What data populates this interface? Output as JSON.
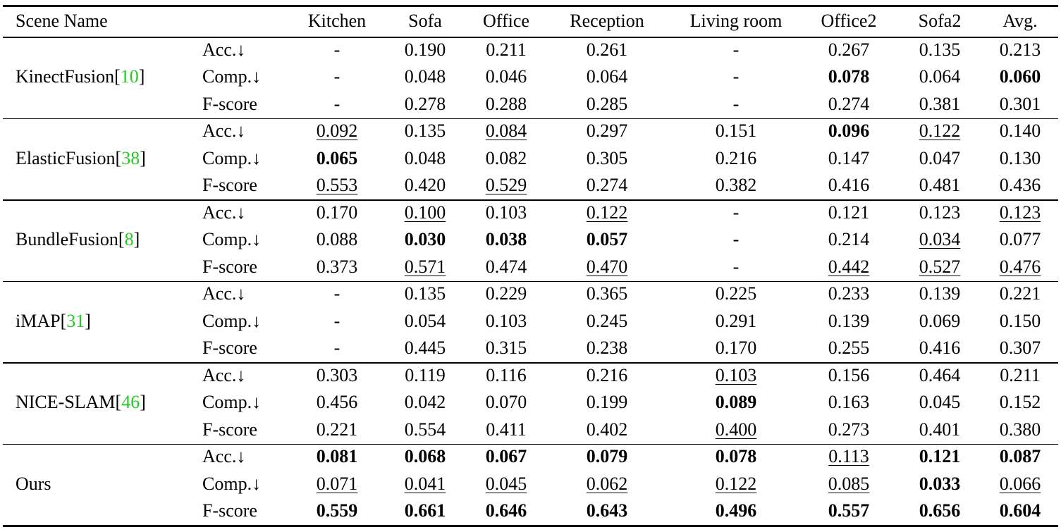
{
  "header": [
    "Scene Name",
    "Kitchen",
    "Sofa",
    "Office",
    "Reception",
    "Living room",
    "Office2",
    "Sofa2",
    "Avg."
  ],
  "groups": [
    {
      "method": "KinectFusion[10]",
      "metrics": [
        {
          "label": "Acc.↓",
          "cells": [
            "-",
            "0.190",
            "0.211",
            "0.261",
            "-",
            "0.267",
            "0.135",
            "0.213"
          ]
        },
        {
          "label": "Comp.↓",
          "cells": [
            "-",
            "0.048",
            "0.046",
            "0.064",
            "-",
            "0.078",
            "0.064",
            "0.060"
          ],
          "bold": [
            5,
            7
          ]
        },
        {
          "label": "F-score",
          "cells": [
            "-",
            "0.278",
            "0.288",
            "0.285",
            "-",
            "0.274",
            "0.381",
            "0.301"
          ]
        }
      ]
    },
    {
      "method": "ElasticFusion[38]",
      "metrics": [
        {
          "label": "Acc.↓",
          "cells": [
            "0.092",
            "0.135",
            "0.084",
            "0.297",
            "0.151",
            "0.096",
            "0.122",
            "0.140"
          ],
          "bold": [
            5
          ],
          "underline": [
            0,
            2,
            6
          ]
        },
        {
          "label": "Comp.↓",
          "cells": [
            "0.065",
            "0.048",
            "0.082",
            "0.305",
            "0.216",
            "0.147",
            "0.047",
            "0.130"
          ],
          "bold": [
            0
          ]
        },
        {
          "label": "F-score",
          "cells": [
            "0.553",
            "0.420",
            "0.529",
            "0.274",
            "0.382",
            "0.416",
            "0.481",
            "0.436"
          ],
          "underline": [
            0,
            2
          ]
        }
      ]
    },
    {
      "method": "BundleFusion[8]",
      "metrics": [
        {
          "label": "Acc.↓",
          "cells": [
            "0.170",
            "0.100",
            "0.103",
            "0.122",
            "-",
            "0.121",
            "0.123",
            "0.123"
          ],
          "underline": [
            1,
            3,
            7
          ]
        },
        {
          "label": "Comp.↓",
          "cells": [
            "0.088",
            "0.030",
            "0.038",
            "0.057",
            "-",
            "0.214",
            "0.034",
            "0.077"
          ],
          "bold": [
            1,
            2,
            3
          ],
          "underline": [
            6
          ]
        },
        {
          "label": "F-score",
          "cells": [
            "0.373",
            "0.571",
            "0.474",
            "0.470",
            "-",
            "0.442",
            "0.527",
            "0.476"
          ],
          "underline": [
            1,
            3,
            5,
            6,
            7
          ]
        }
      ]
    },
    {
      "method": "iMAP[31]",
      "metrics": [
        {
          "label": "Acc.↓",
          "cells": [
            "-",
            "0.135",
            "0.229",
            "0.365",
            "0.225",
            "0.233",
            "0.139",
            "0.221"
          ]
        },
        {
          "label": "Comp.↓",
          "cells": [
            "-",
            "0.054",
            "0.103",
            "0.245",
            "0.291",
            "0.139",
            "0.069",
            "0.150"
          ]
        },
        {
          "label": "F-score",
          "cells": [
            "-",
            "0.445",
            "0.315",
            "0.238",
            "0.170",
            "0.255",
            "0.416",
            "0.307"
          ]
        }
      ]
    },
    {
      "method": "NICE-SLAM[46]",
      "metrics": [
        {
          "label": "Acc.↓",
          "cells": [
            "0.303",
            "0.119",
            "0.116",
            "0.216",
            "0.103",
            "0.156",
            "0.464",
            "0.211"
          ],
          "underline": [
            4
          ]
        },
        {
          "label": "Comp.↓",
          "cells": [
            "0.456",
            "0.042",
            "0.070",
            "0.199",
            "0.089",
            "0.163",
            "0.045",
            "0.152"
          ],
          "bold": [
            4
          ]
        },
        {
          "label": "F-score",
          "cells": [
            "0.221",
            "0.554",
            "0.411",
            "0.402",
            "0.400",
            "0.273",
            "0.401",
            "0.380"
          ],
          "underline": [
            4
          ]
        }
      ]
    },
    {
      "method": "Ours",
      "metrics": [
        {
          "label": "Acc.↓",
          "cells": [
            "0.081",
            "0.068",
            "0.067",
            "0.079",
            "0.078",
            "0.113",
            "0.121",
            "0.087"
          ],
          "bold": [
            0,
            1,
            2,
            3,
            4,
            6,
            7
          ],
          "underline": [
            5
          ]
        },
        {
          "label": "Comp.↓",
          "cells": [
            "0.071",
            "0.041",
            "0.045",
            "0.062",
            "0.122",
            "0.085",
            "0.033",
            "0.066"
          ],
          "bold": [
            6
          ],
          "underline": [
            0,
            1,
            2,
            3,
            4,
            5,
            7
          ]
        },
        {
          "label": "F-score",
          "cells": [
            "0.559",
            "0.661",
            "0.646",
            "0.643",
            "0.496",
            "0.557",
            "0.656",
            "0.604"
          ],
          "bold": [
            0,
            1,
            2,
            3,
            4,
            5,
            6,
            7
          ]
        }
      ]
    }
  ]
}
